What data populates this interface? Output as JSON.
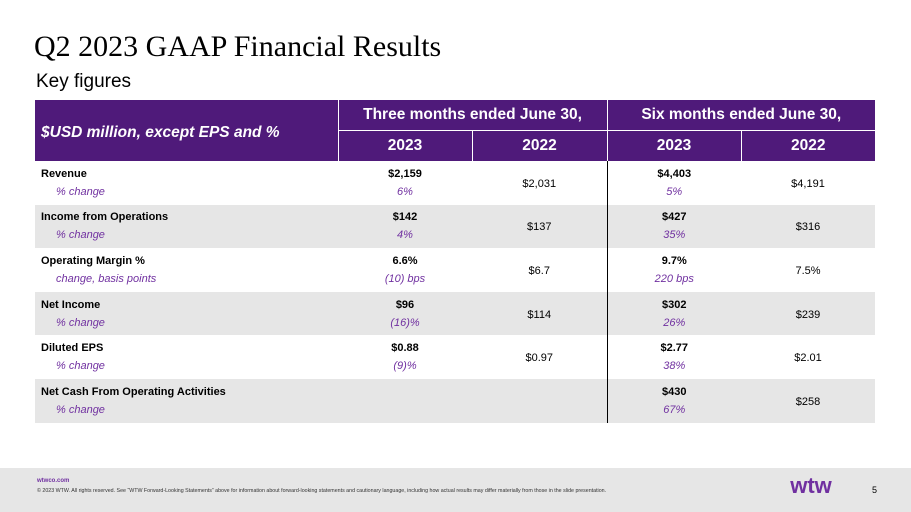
{
  "title": "Q2 2023 GAAP Financial Results",
  "subtitle": "Key figures",
  "table": {
    "units_note": "$USD million, except EPS and %",
    "group_headers": [
      "Three months ended June 30,",
      "Six months ended June 30,"
    ],
    "year_headers": [
      "2023",
      "2022",
      "2023",
      "2022"
    ],
    "rows": [
      {
        "label": "Revenue",
        "sub": "% change",
        "q_2023": "$2,159",
        "q_2023_sub": "6%",
        "q_2022": "$2,031",
        "h_2023": "$4,403",
        "h_2023_sub": "5%",
        "h_2022": "$4,191"
      },
      {
        "label": "Income from Operations",
        "sub": "% change",
        "q_2023": "$142",
        "q_2023_sub": "4%",
        "q_2022": "$137",
        "h_2023": "$427",
        "h_2023_sub": "35%",
        "h_2022": "$316"
      },
      {
        "label": "Operating Margin %",
        "sub": "change, basis points",
        "q_2023": "6.6%",
        "q_2023_sub": "(10) bps",
        "q_2022": "$6.7",
        "h_2023": "9.7%",
        "h_2023_sub": "220 bps",
        "h_2022": "7.5%"
      },
      {
        "label": "Net Income",
        "sub": "% change",
        "q_2023": "$96",
        "q_2023_sub": "(16)%",
        "q_2022": "$114",
        "h_2023": "$302",
        "h_2023_sub": "26%",
        "h_2022": "$239"
      },
      {
        "label": "Diluted EPS",
        "sub": "% change",
        "q_2023": "$0.88",
        "q_2023_sub": "(9)%",
        "q_2022": "$0.97",
        "h_2023": "$2.77",
        "h_2023_sub": "38%",
        "h_2022": "$2.01"
      },
      {
        "label": "Net Cash From Operating Activities",
        "sub": "% change",
        "q_2023": "",
        "q_2023_sub": "",
        "q_2022": "",
        "h_2023": "$430",
        "h_2023_sub": "67%",
        "h_2022": "$258"
      }
    ]
  },
  "footer": {
    "url": "wtwco.com",
    "copyright": "© 2023 WTW. All rights reserved. See “WTW Forward-Looking Statements” above for information about forward-looking statements and cautionary language, including how actual results may differ materially from those in the slide presentation.",
    "logo_text": "wtw",
    "page_number": "5"
  },
  "colors": {
    "header_bg": "#4f1a7a",
    "accent_purple": "#7030a0",
    "row_shade": "#e6e6e6"
  }
}
